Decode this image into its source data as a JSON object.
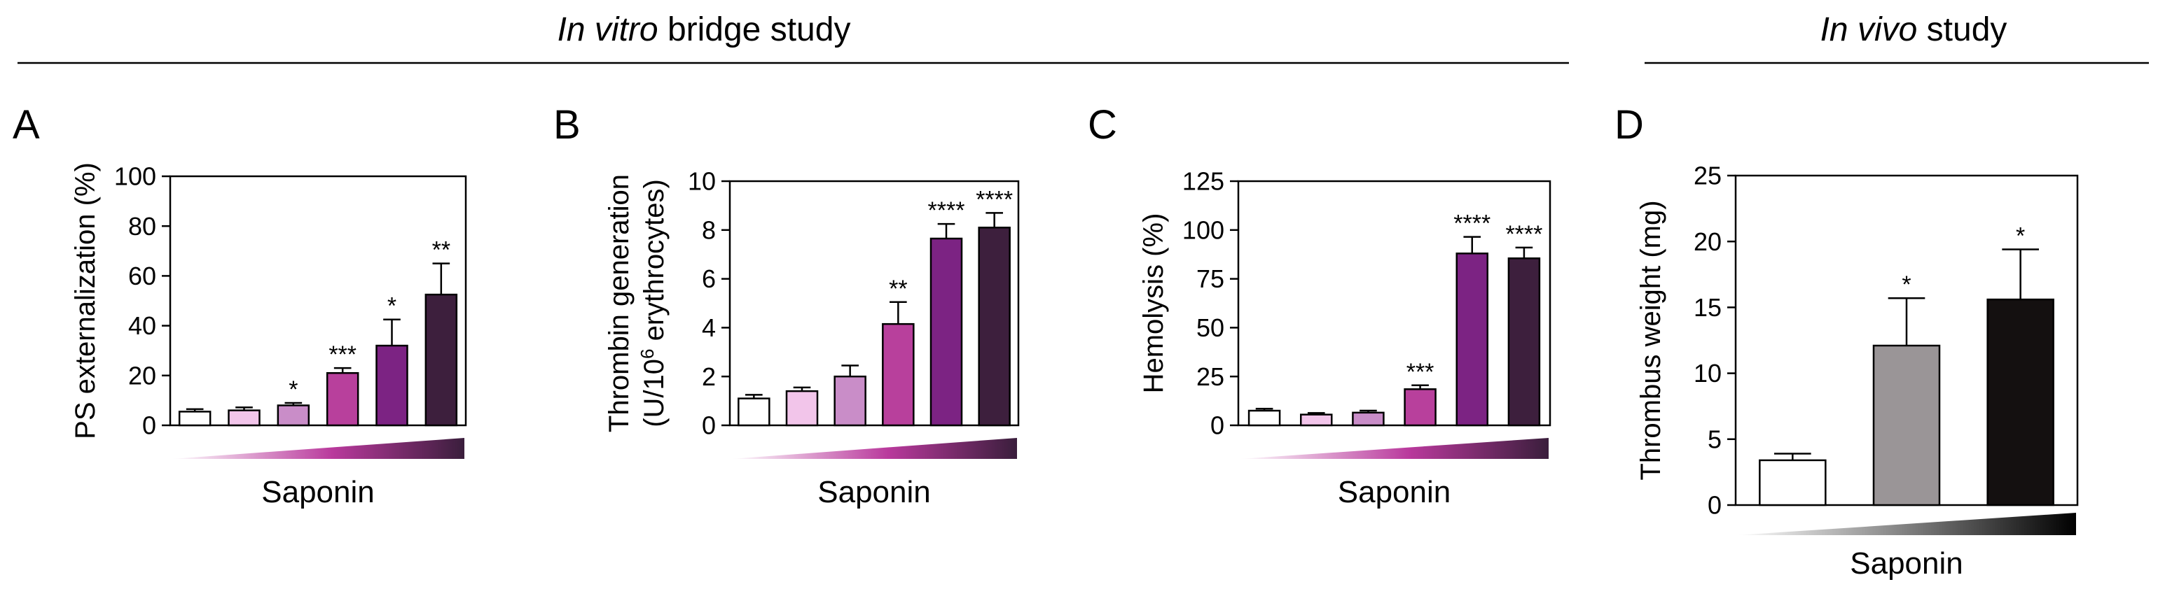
{
  "sections": {
    "in_vitro": {
      "italic": "In vitro",
      "rest": " bridge study"
    },
    "in_vivo": {
      "italic": "In vivo",
      "rest": " study"
    }
  },
  "colors": {
    "purple_scale": [
      "#ffffff",
      "#f2c5ea",
      "#c98dc8",
      "#b8409c",
      "#7c2383",
      "#3d1f3d"
    ],
    "grey_scale": [
      "#ffffff",
      "#9a9597",
      "#141010"
    ]
  },
  "chart_data": [
    {
      "panel": "A",
      "type": "bar",
      "ylabel": "PS externalization (%)",
      "ylim": [
        0,
        100
      ],
      "yticks": [
        0,
        20,
        40,
        60,
        80,
        100
      ],
      "xlabel": "Saponin",
      "values": [
        5.5,
        6.0,
        8.0,
        21.0,
        32.0,
        52.5
      ],
      "errors": [
        1.0,
        1.2,
        1.0,
        2.0,
        10.5,
        12.5
      ],
      "annotations": [
        "",
        "",
        "*",
        "***",
        "*",
        "**"
      ],
      "gradient": "purple"
    },
    {
      "panel": "B",
      "type": "bar",
      "ylabel": "Thrombin generation",
      "ylabel2_prefix": "(U/10",
      "ylabel2_sup": "6",
      "ylabel2_suffix": " erythrocytes)",
      "ylim": [
        0,
        10
      ],
      "yticks": [
        0,
        2,
        4,
        6,
        8,
        10
      ],
      "xlabel": "Saponin",
      "values": [
        1.1,
        1.4,
        2.0,
        4.15,
        7.65,
        8.1
      ],
      "errors": [
        0.15,
        0.15,
        0.45,
        0.9,
        0.6,
        0.6
      ],
      "annotations": [
        "",
        "",
        "",
        "**",
        "****",
        "****"
      ],
      "gradient": "purple"
    },
    {
      "panel": "C",
      "type": "bar",
      "ylabel": "Hemolysis (%)",
      "ylim": [
        0,
        125
      ],
      "yticks": [
        0,
        25,
        50,
        75,
        100,
        125
      ],
      "xlabel": "Saponin",
      "values": [
        7.5,
        5.5,
        6.5,
        18.5,
        88.0,
        85.5
      ],
      "errors": [
        1.0,
        0.8,
        1.0,
        2.0,
        8.5,
        5.5
      ],
      "annotations": [
        "",
        "",
        "",
        "***",
        "****",
        "****"
      ],
      "gradient": "purple"
    },
    {
      "panel": "D",
      "type": "bar",
      "ylabel": "Thrombus weight (mg)",
      "ylim": [
        0,
        25
      ],
      "yticks": [
        0,
        5,
        10,
        15,
        20,
        25
      ],
      "xlabel": "Saponin",
      "values": [
        3.4,
        12.1,
        15.6
      ],
      "errors": [
        0.5,
        3.6,
        3.8
      ],
      "annotations": [
        "",
        "*",
        "*"
      ],
      "gradient": "grey"
    }
  ]
}
